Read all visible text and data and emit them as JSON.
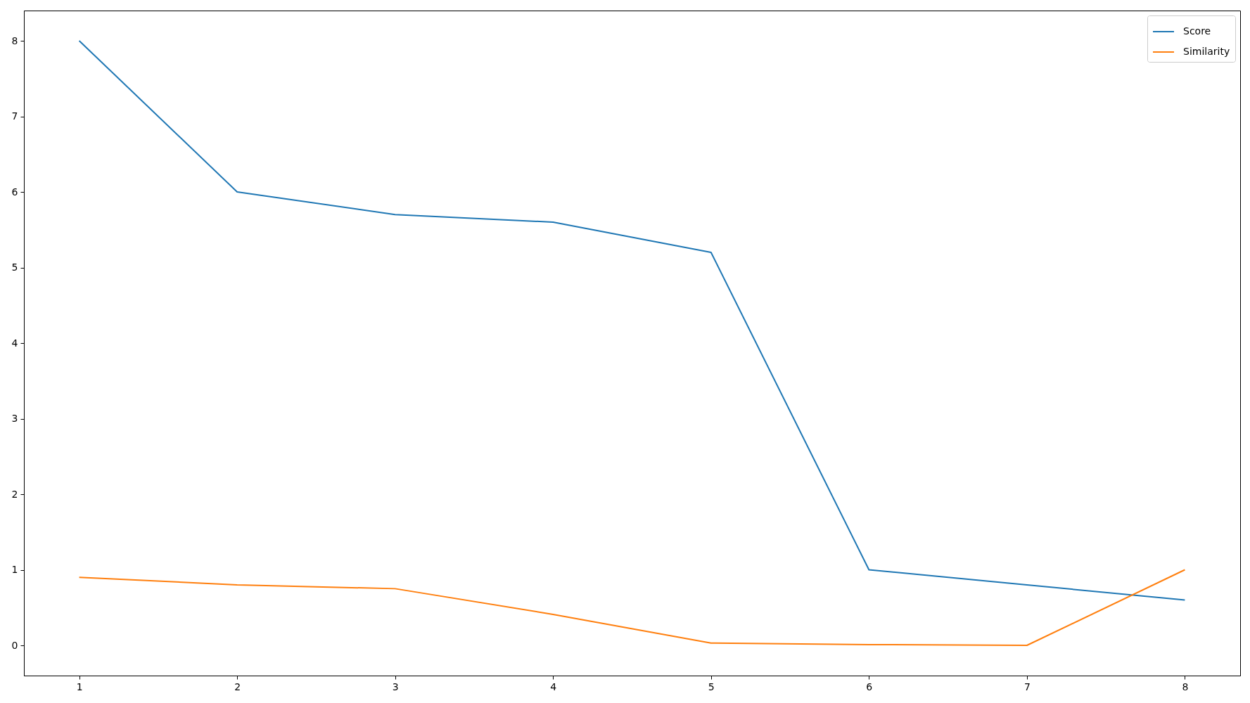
{
  "chart_data": {
    "type": "line",
    "x": [
      1,
      2,
      3,
      4,
      5,
      6,
      7,
      8
    ],
    "series": [
      {
        "name": "Score",
        "color": "#1f77b4",
        "values": [
          8,
          6,
          5.7,
          5.6,
          5.2,
          1.0,
          0.8,
          0.6
        ]
      },
      {
        "name": "Similarity",
        "color": "#ff7f0e",
        "values": [
          0.9,
          0.8,
          0.75,
          0.41,
          0.03,
          0.01,
          0.0,
          1.0
        ]
      }
    ],
    "xlim": [
      0.65,
      8.35
    ],
    "ylim": [
      -0.4,
      8.4
    ],
    "xticks": [
      1,
      2,
      3,
      4,
      5,
      6,
      7,
      8
    ],
    "yticks": [
      0,
      1,
      2,
      3,
      4,
      5,
      6,
      7,
      8
    ],
    "grid": false,
    "legend": "top right",
    "marker": "none",
    "line_style": "solid"
  }
}
